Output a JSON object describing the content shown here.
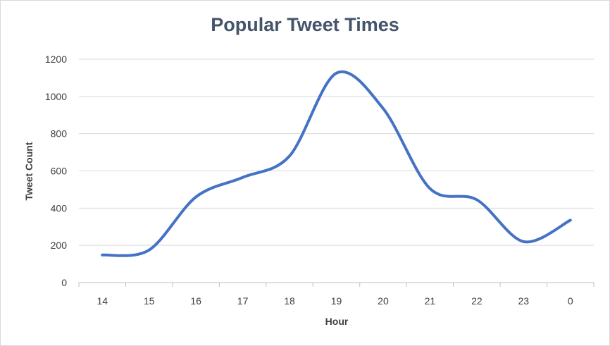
{
  "chart_data": {
    "type": "line",
    "title": "Popular Tweet Times",
    "xlabel": "Hour",
    "ylabel": "Tweet Count",
    "categories": [
      "14",
      "15",
      "16",
      "17",
      "18",
      "19",
      "20",
      "21",
      "22",
      "23",
      "0"
    ],
    "series": [
      {
        "values": [
          148,
          175,
          460,
          565,
          680,
          1125,
          935,
          505,
          445,
          220,
          335
        ]
      }
    ],
    "ylim": [
      0,
      1200
    ],
    "yticks": [
      "0",
      "200",
      "400",
      "600",
      "800",
      "1000",
      "1200"
    ],
    "grid": true,
    "smooth": true,
    "colors": {
      "line": "#4472c4",
      "grid": "#d9d9d9",
      "title": "#44546a",
      "text": "#404040"
    }
  }
}
